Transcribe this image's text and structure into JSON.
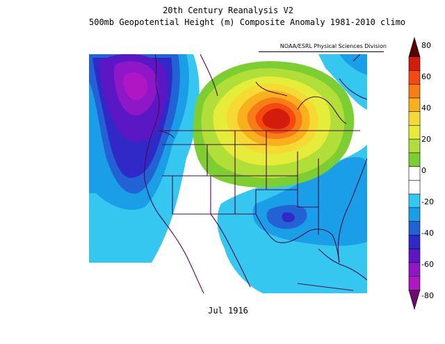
{
  "title_line1": "20th Century Reanalysis V2",
  "title_line2": "500mb Geopotential Height (m) Composite Anomaly 1981-2010 climo",
  "credit": "NOAA/ESRL Physical Sciences Division",
  "date_label": "Jul 1916",
  "colorbar": {
    "ticks": [
      "80",
      "60",
      "40",
      "20",
      "0",
      "-20",
      "-40",
      "-60",
      "-80"
    ],
    "colors": [
      "#5a0000",
      "#d41c0c",
      "#f44a10",
      "#f77d18",
      "#f8b01e",
      "#f7d934",
      "#e6ec3a",
      "#b2de3a",
      "#7cce31",
      "#ffffff",
      "#ffffff",
      "#36c7f0",
      "#1a9ee8",
      "#2362d4",
      "#3029c8",
      "#5b17c4",
      "#8e18c8",
      "#b016c4",
      "#6e0a6e"
    ]
  }
}
